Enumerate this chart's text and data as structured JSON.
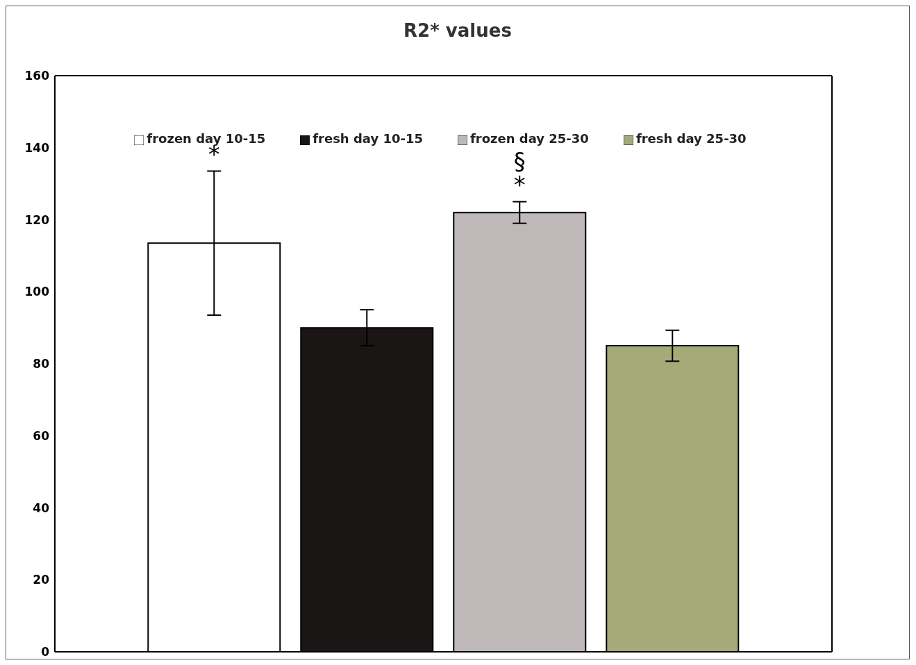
{
  "chart_data": {
    "type": "bar",
    "title": "R2* values",
    "categories": [
      null
    ],
    "series": [
      {
        "name": "frozen day 10-15",
        "color": "#ffffff",
        "values": [
          113.5
        ],
        "errors": [
          20
        ]
      },
      {
        "name": "fresh day 10-15",
        "color": "#1a1616",
        "values": [
          90
        ],
        "errors": [
          5
        ]
      },
      {
        "name": "frozen day 25-30",
        "color": "#bfb8b8",
        "values": [
          122
        ],
        "errors": [
          3
        ]
      },
      {
        "name": "fresh day 25-30",
        "color": "#a6aa78",
        "values": [
          85
        ],
        "errors": [
          4.3
        ]
      }
    ],
    "annotations": [
      "*",
      "§",
      "*"
    ],
    "ylim": [
      0,
      160
    ],
    "yticks": [
      0,
      20,
      40,
      60,
      80,
      100,
      120,
      140,
      160
    ],
    "legend": "top"
  }
}
